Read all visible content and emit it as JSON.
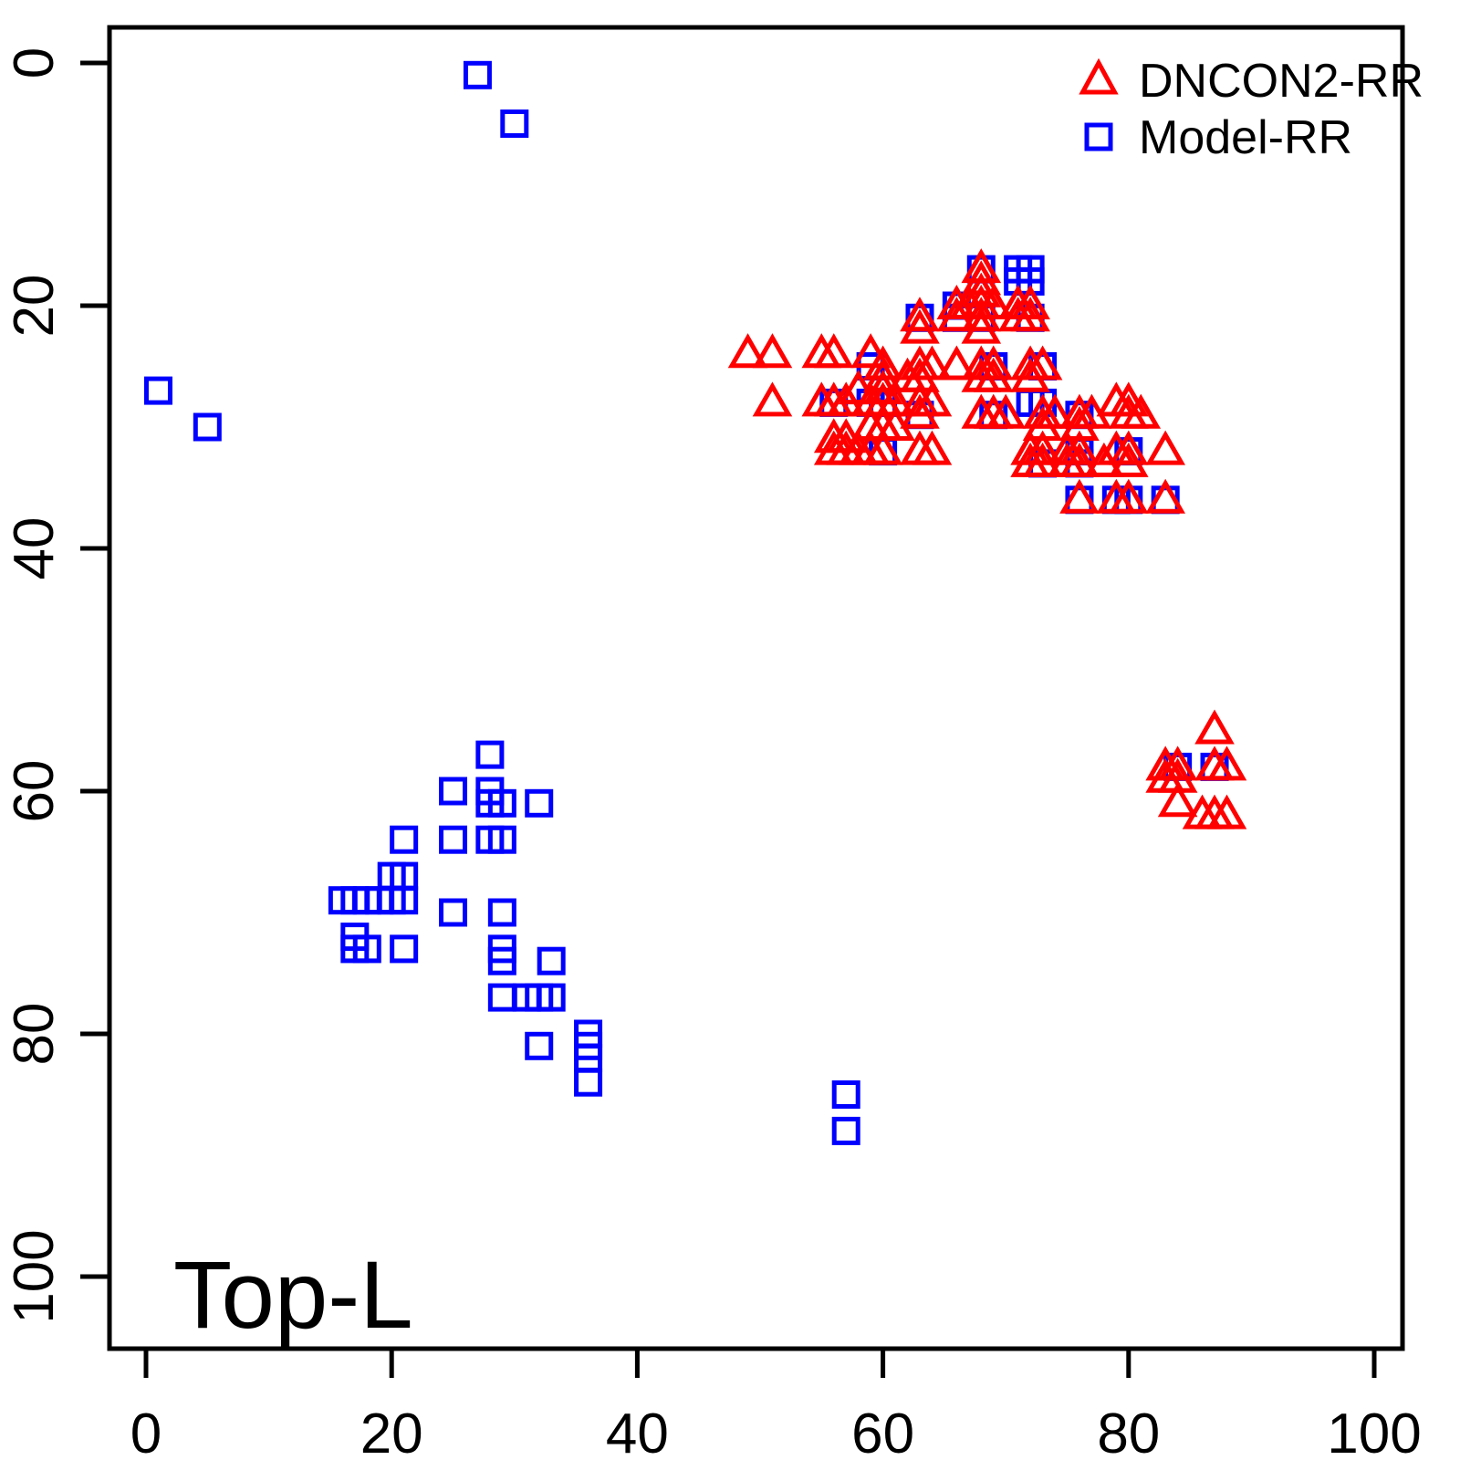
{
  "chart_data": {
    "type": "scatter",
    "title": "",
    "annotation": "Top-L",
    "xlabel": "",
    "ylabel": "",
    "x_ticks": [
      0,
      20,
      40,
      60,
      80,
      100
    ],
    "y_ticks": [
      0,
      20,
      40,
      60,
      80,
      100
    ],
    "xlim": [
      -3,
      102.5
    ],
    "ylim": [
      106,
      -3
    ],
    "y_axis_inverted": true,
    "grid": false,
    "legend_position": "top-right",
    "series": [
      {
        "name": "DNCON2-RR",
        "marker": "triangle",
        "color": "#ff0000",
        "points": [
          [
            49,
            24
          ],
          [
            51,
            24
          ],
          [
            55,
            24
          ],
          [
            56,
            24
          ],
          [
            59,
            24
          ],
          [
            60,
            25
          ],
          [
            63,
            25
          ],
          [
            64,
            25
          ],
          [
            66,
            25
          ],
          [
            68,
            25
          ],
          [
            69,
            25
          ],
          [
            72,
            25
          ],
          [
            73,
            25
          ],
          [
            60,
            26
          ],
          [
            62,
            26
          ],
          [
            63,
            26
          ],
          [
            68,
            26
          ],
          [
            69,
            26
          ],
          [
            72,
            26
          ],
          [
            58,
            27
          ],
          [
            60,
            27
          ],
          [
            51,
            28
          ],
          [
            55,
            28
          ],
          [
            56,
            28
          ],
          [
            57,
            28
          ],
          [
            59,
            28
          ],
          [
            60,
            28
          ],
          [
            61,
            28
          ],
          [
            63,
            28
          ],
          [
            64,
            28
          ],
          [
            79,
            28
          ],
          [
            80,
            28
          ],
          [
            63,
            29
          ],
          [
            68,
            29
          ],
          [
            69,
            29
          ],
          [
            70,
            29
          ],
          [
            73,
            29
          ],
          [
            74,
            29
          ],
          [
            76,
            29
          ],
          [
            77,
            29
          ],
          [
            80,
            29
          ],
          [
            81,
            29
          ],
          [
            59,
            30
          ],
          [
            60,
            30
          ],
          [
            61,
            30
          ],
          [
            73,
            30
          ],
          [
            76,
            30
          ],
          [
            56,
            31
          ],
          [
            57,
            31
          ],
          [
            56,
            32
          ],
          [
            57,
            32
          ],
          [
            58,
            32
          ],
          [
            59,
            32
          ],
          [
            60,
            32
          ],
          [
            63,
            32
          ],
          [
            64,
            32
          ],
          [
            72,
            32
          ],
          [
            73,
            32
          ],
          [
            75,
            32
          ],
          [
            76,
            32
          ],
          [
            79,
            32
          ],
          [
            80,
            32
          ],
          [
            83,
            32
          ],
          [
            72,
            33
          ],
          [
            73,
            33
          ],
          [
            75,
            33
          ],
          [
            76,
            33
          ],
          [
            78,
            33
          ],
          [
            80,
            33
          ],
          [
            76,
            36
          ],
          [
            79,
            36
          ],
          [
            80,
            36
          ],
          [
            83,
            36
          ],
          [
            63,
            21
          ],
          [
            63,
            22
          ],
          [
            66,
            20
          ],
          [
            67,
            20
          ],
          [
            66,
            21
          ],
          [
            68,
            17
          ],
          [
            68,
            18
          ],
          [
            68,
            19
          ],
          [
            68,
            20
          ],
          [
            68,
            21
          ],
          [
            68,
            22
          ],
          [
            69,
            20
          ],
          [
            71,
            20
          ],
          [
            72,
            20
          ],
          [
            71,
            21
          ],
          [
            72,
            21
          ],
          [
            87,
            55
          ],
          [
            83,
            58
          ],
          [
            84,
            58
          ],
          [
            87,
            58
          ],
          [
            88,
            58
          ],
          [
            83,
            59
          ],
          [
            84,
            59
          ],
          [
            84,
            61
          ],
          [
            86,
            62
          ],
          [
            87,
            62
          ],
          [
            88,
            62
          ]
        ]
      },
      {
        "name": "Model-RR",
        "marker": "square",
        "color": "#0000ff",
        "points": [
          [
            27,
            1
          ],
          [
            30,
            5
          ],
          [
            1,
            27
          ],
          [
            5,
            30
          ],
          [
            68,
            17
          ],
          [
            71,
            17
          ],
          [
            72,
            17
          ],
          [
            71,
            18
          ],
          [
            72,
            18
          ],
          [
            66,
            20
          ],
          [
            63,
            21
          ],
          [
            66,
            21
          ],
          [
            68,
            21
          ],
          [
            72,
            21
          ],
          [
            59,
            25
          ],
          [
            69,
            25
          ],
          [
            73,
            25
          ],
          [
            56,
            28
          ],
          [
            59,
            28
          ],
          [
            60,
            28
          ],
          [
            72,
            28
          ],
          [
            73,
            28
          ],
          [
            63,
            29
          ],
          [
            69,
            29
          ],
          [
            76,
            29
          ],
          [
            60,
            32
          ],
          [
            76,
            32
          ],
          [
            80,
            32
          ],
          [
            73,
            33
          ],
          [
            76,
            33
          ],
          [
            76,
            36
          ],
          [
            79,
            36
          ],
          [
            80,
            36
          ],
          [
            83,
            36
          ],
          [
            84,
            58
          ],
          [
            87,
            58
          ],
          [
            57,
            85
          ],
          [
            57,
            88
          ],
          [
            28,
            57
          ],
          [
            25,
            60
          ],
          [
            28,
            60
          ],
          [
            28,
            61
          ],
          [
            29,
            61
          ],
          [
            32,
            61
          ],
          [
            21,
            64
          ],
          [
            25,
            64
          ],
          [
            28,
            64
          ],
          [
            29,
            64
          ],
          [
            20,
            67
          ],
          [
            21,
            67
          ],
          [
            16,
            69
          ],
          [
            17,
            69
          ],
          [
            18,
            69
          ],
          [
            19,
            69
          ],
          [
            20,
            69
          ],
          [
            21,
            69
          ],
          [
            25,
            70
          ],
          [
            29,
            70
          ],
          [
            17,
            72
          ],
          [
            17,
            73
          ],
          [
            18,
            73
          ],
          [
            21,
            73
          ],
          [
            29,
            73
          ],
          [
            29,
            74
          ],
          [
            33,
            74
          ],
          [
            29,
            77
          ],
          [
            31,
            77
          ],
          [
            32,
            77
          ],
          [
            33,
            77
          ],
          [
            36,
            80
          ],
          [
            32,
            81
          ],
          [
            36,
            81
          ],
          [
            36,
            82
          ],
          [
            36,
            84
          ]
        ]
      }
    ]
  },
  "legend": {
    "items": [
      {
        "label": "DNCON2-RR",
        "marker": "triangle-icon",
        "color": "#ff0000"
      },
      {
        "label": "Model-RR",
        "marker": "square-icon",
        "color": "#0000ff"
      }
    ]
  },
  "colors": {
    "dncon2": "#ff0000",
    "model": "#0000ff",
    "axis": "#000000",
    "background": "#ffffff"
  }
}
